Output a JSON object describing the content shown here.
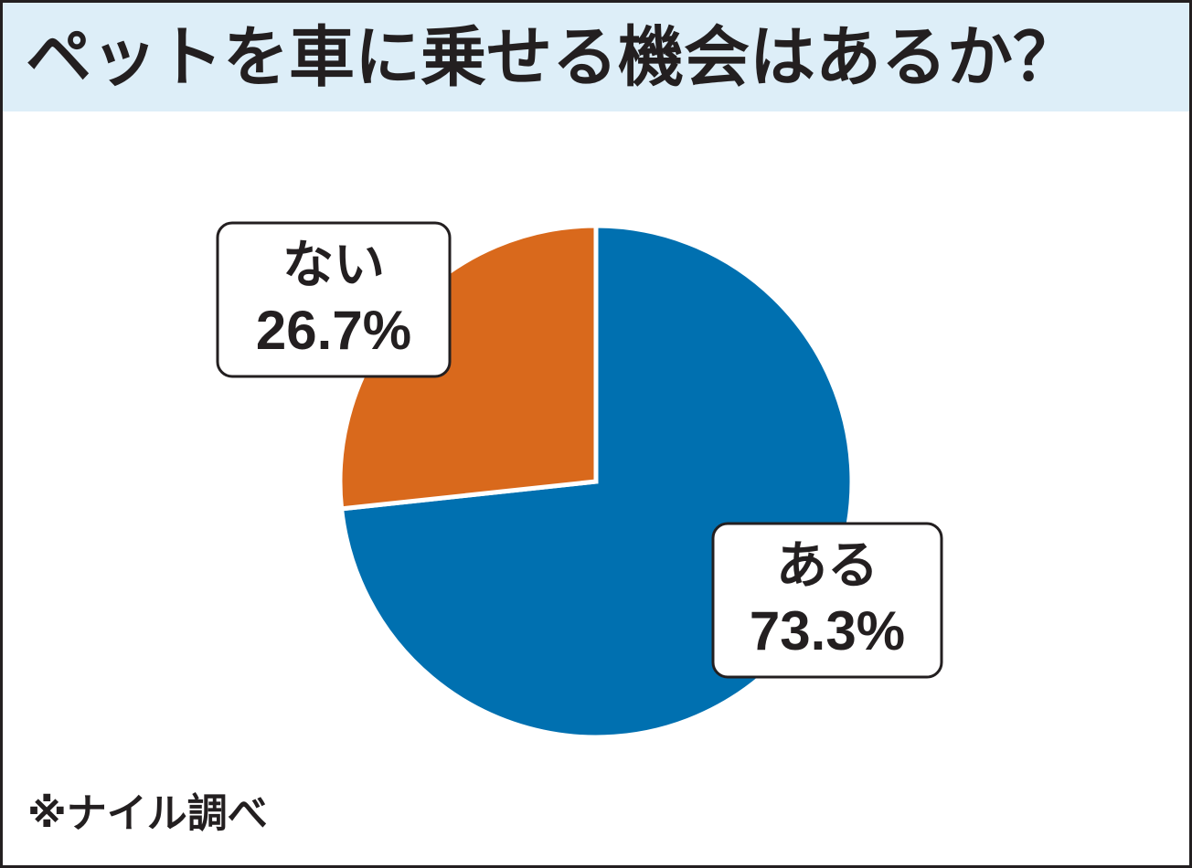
{
  "chart_data": {
    "type": "pie",
    "title": "ペットを車に乗せる機会はあるか？",
    "categories": [
      "ある",
      "ない"
    ],
    "values": [
      73.3,
      26.7
    ],
    "value_labels": [
      "73.3%",
      "26.7%"
    ],
    "colors": [
      "#0070b0",
      "#d9691c"
    ],
    "note": "※ナイル調べ"
  }
}
